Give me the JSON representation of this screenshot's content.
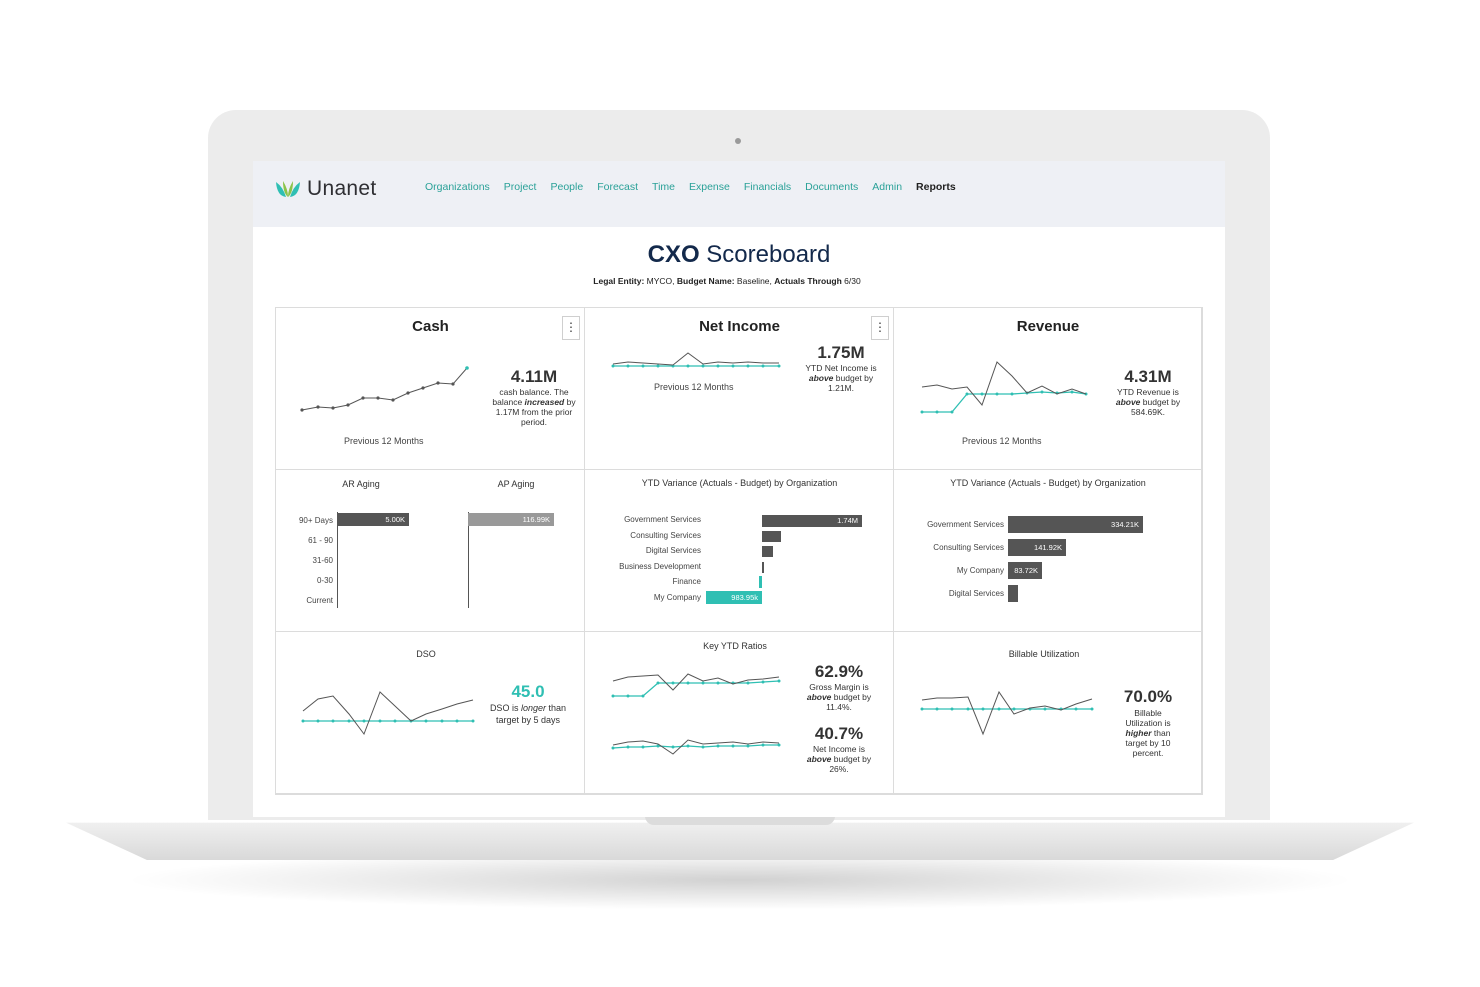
{
  "header": {
    "logo_text": "Unanet",
    "nav": [
      "Organizations",
      "Project",
      "People",
      "Forecast",
      "Time",
      "Expense",
      "Financials",
      "Documents",
      "Admin",
      "Reports"
    ],
    "active_nav": "Reports"
  },
  "page": {
    "title_bold": "CXO",
    "title_rest": "Scoreboard",
    "subtitle": {
      "entity_label": "Legal Entity:",
      "entity_value": "MYCO,",
      "budget_label": "Budget Name:",
      "budget_value": "Baseline,",
      "actuals_label": "Actuals Through",
      "actuals_value": "6/30"
    }
  },
  "cash": {
    "title": "Cash",
    "value": "4.11M",
    "note_1": "cash balance. The balance",
    "note_em": "increased",
    "note_2": "by 1.17M from the prior period.",
    "caption": "Previous 12 Months",
    "menu": "⋮"
  },
  "net_income": {
    "title": "Net Income",
    "value": "1.75M",
    "note_1": "YTD Net Income is",
    "note_em": "above",
    "note_2": "budget by 1.21M.",
    "caption": "Previous 12 Months",
    "menu": "⋮"
  },
  "revenue": {
    "title": "Revenue",
    "value": "4.31M",
    "note_1": "YTD Revenue is",
    "note_em": "above",
    "note_2": "budget by 584.69K.",
    "caption": "Previous 12 Months"
  },
  "aging": {
    "ar_title": "AR Aging",
    "ap_title": "AP Aging",
    "buckets": [
      "90+ Days",
      "61 - 90",
      "31-60",
      "0-30",
      "Current"
    ],
    "ar_bar_label": "5.00K",
    "ap_bar_label": "116.99K"
  },
  "variance_net": {
    "title": "YTD Variance (Actuals - Budget) by Organization",
    "rows": [
      "Government Services",
      "Consulting Services",
      "Digital Services",
      "Business Development",
      "Finance",
      "My Company"
    ],
    "labels": [
      "1.74M",
      "",
      "",
      "",
      "",
      "983.95k"
    ]
  },
  "variance_rev": {
    "title": "YTD Variance (Actuals - Budget) by Organization",
    "rows": [
      "Government Services",
      "Consulting Services",
      "My Company",
      "Digital Services"
    ],
    "labels": [
      "334.21K",
      "141.92K",
      "83.72K",
      ""
    ]
  },
  "dso": {
    "title": "DSO",
    "value": "45.0",
    "note_1": "DSO is",
    "note_em": "longer",
    "note_2": "than target by 5 days"
  },
  "ratios": {
    "title": "Key YTD Ratios",
    "gm_value": "62.9%",
    "gm_note_1": "Gross Margin is",
    "gm_note_em": "above",
    "gm_note_2": "budget by 11.4%.",
    "ni_value": "40.7%",
    "ni_note_1": "Net Income is",
    "ni_note_em": "above",
    "ni_note_2": "budget by 26%."
  },
  "utilization": {
    "title": "Billable Utilization",
    "value": "70.0%",
    "note_1": "Billable Utilization is",
    "note_em": "higher",
    "note_2": "than target by 10 percent."
  },
  "colors": {
    "accent_teal": "#2fbfb3",
    "nav_teal": "#2aa198",
    "bar_dark": "#555555",
    "title_navy": "#13294b"
  }
}
